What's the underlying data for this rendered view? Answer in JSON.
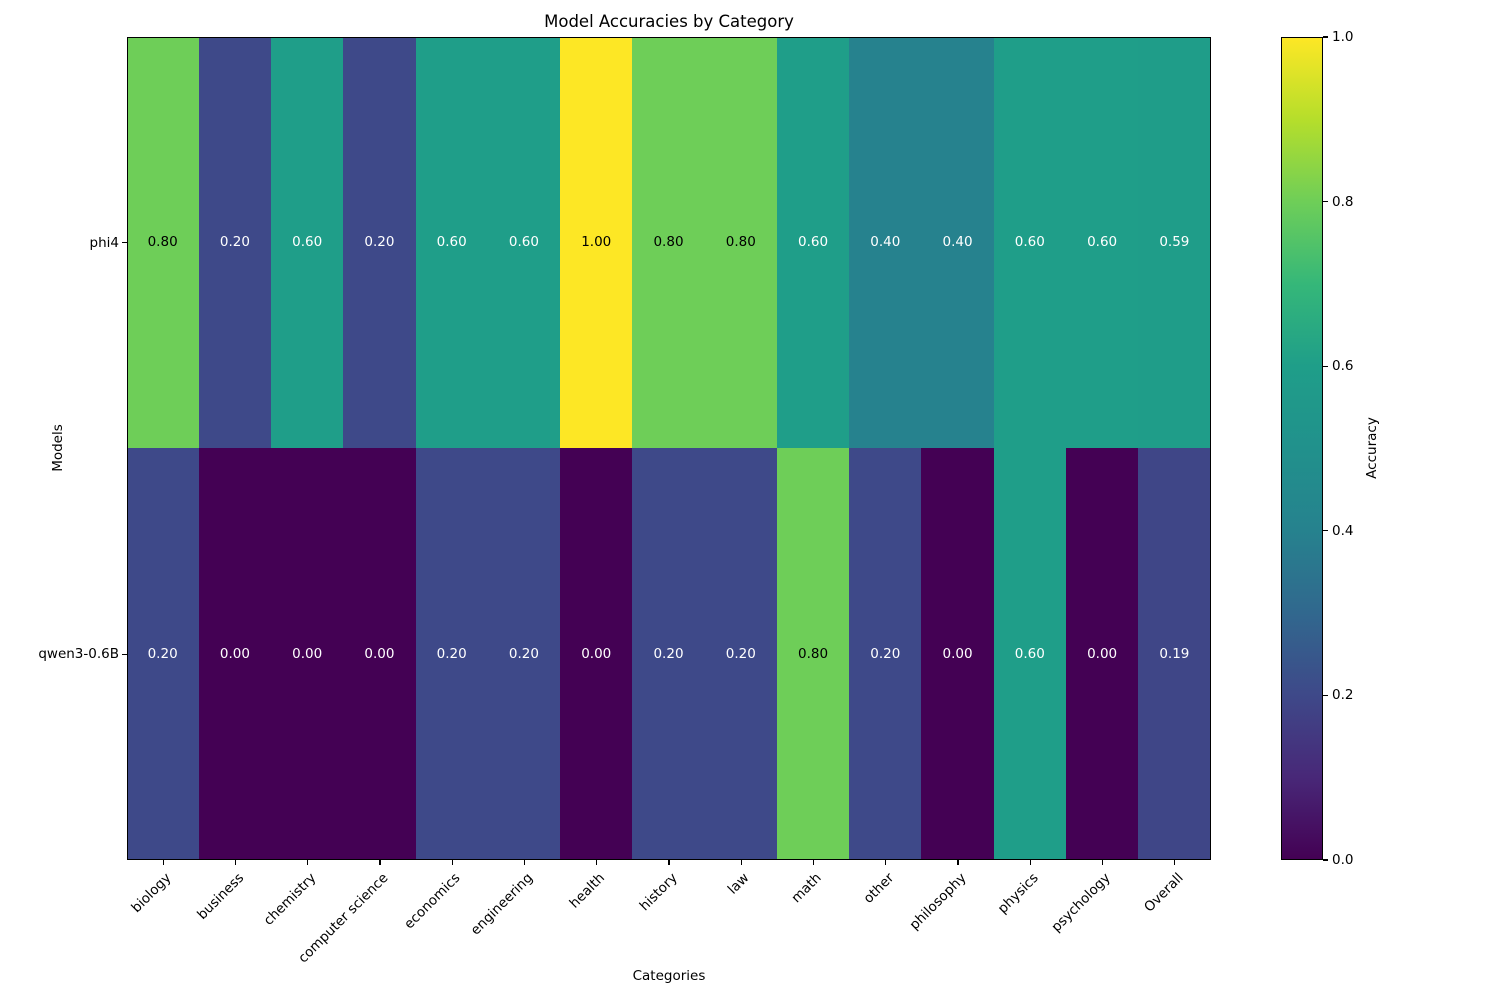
{
  "chart_data": {
    "type": "heatmap",
    "title": "Model Accuracies by Category",
    "xlabel": "Categories",
    "ylabel": "Models",
    "categories": [
      "biology",
      "business",
      "chemistry",
      "computer science",
      "economics",
      "engineering",
      "health",
      "history",
      "law",
      "math",
      "other",
      "philosophy",
      "physics",
      "psychology",
      "Overall"
    ],
    "rows": [
      "phi4",
      "qwen3-0.6B"
    ],
    "series": [
      {
        "name": "phi4",
        "values": [
          0.8,
          0.2,
          0.6,
          0.2,
          0.6,
          0.6,
          1.0,
          0.8,
          0.8,
          0.6,
          0.4,
          0.4,
          0.6,
          0.6,
          0.59
        ]
      },
      {
        "name": "qwen3-0.6B",
        "values": [
          0.2,
          0.0,
          0.0,
          0.0,
          0.2,
          0.2,
          0.0,
          0.2,
          0.2,
          0.8,
          0.2,
          0.0,
          0.6,
          0.0,
          0.19
        ]
      }
    ],
    "value_decimals": 2,
    "colormap": "viridis",
    "colormap_stops": [
      "#440154",
      "#482878",
      "#3e4989",
      "#31688e",
      "#26828e",
      "#21918c",
      "#1f9e89",
      "#35b779",
      "#6ece58",
      "#b5de2b",
      "#fde725"
    ],
    "annotation_light_text": "#ffffff",
    "annotation_dark_text": "#000000",
    "annotation_dark_text_threshold": 0.8,
    "colorbar": {
      "label": "Accuracy",
      "min": 0.0,
      "max": 1.0,
      "ticks": [
        "1.0",
        "0.8",
        "0.6",
        "0.4",
        "0.2",
        "0.0"
      ]
    },
    "grid": false,
    "legend_position": "colorbar-right"
  }
}
